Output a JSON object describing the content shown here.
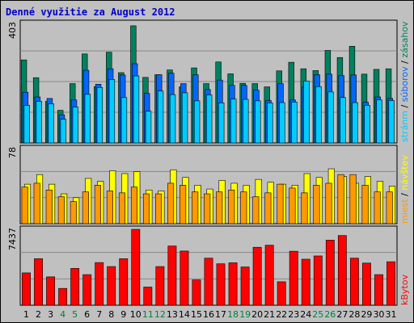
{
  "title": "Denné využitie za August 2012",
  "colors": {
    "background": "#c0c0c0",
    "panel": "#c0c0c0",
    "grid": "#888888",
    "title": "#0000cc",
    "weekend_label": "#007f3f",
    "weekday_label": "#000000",
    "pages": "#00ccff",
    "files": "#0066ff",
    "hits": "#00805f",
    "visits": "#ff9900",
    "sites": "#ffff00",
    "kbytes": "#ff0000"
  },
  "chart_data": [
    {
      "type": "bar",
      "panel": "hits-files-pages",
      "title": "",
      "ylabel_max": "403",
      "ymax": 403,
      "categories": [
        "1",
        "2",
        "3",
        "4",
        "5",
        "6",
        "7",
        "8",
        "9",
        "10",
        "11",
        "12",
        "13",
        "14",
        "15",
        "16",
        "17",
        "18",
        "19",
        "20",
        "21",
        "22",
        "23",
        "24",
        "25",
        "26",
        "27",
        "28",
        "29",
        "30",
        "31"
      ],
      "series": [
        {
          "name": "zásahov",
          "values": [
            280,
            220,
            140,
            110,
            200,
            300,
            190,
            306,
            237,
            395,
            221,
            230,
            246,
            189,
            253,
            200,
            273,
            233,
            201,
            200,
            189,
            243,
            272,
            250,
            244,
            312,
            288,
            326,
            232,
            248,
            250
          ]
        },
        {
          "name": "súborov",
          "values": [
            171,
            155,
            150,
            95,
            145,
            245,
            198,
            250,
            229,
            267,
            167,
            230,
            235,
            200,
            230,
            180,
            212,
            194,
            194,
            178,
            143,
            200,
            145,
            189,
            230,
            232,
            227,
            229,
            137,
            155,
            150
          ]
        },
        {
          "name": "stránm",
          "values": [
            127,
            140,
            132,
            80,
            121,
            164,
            187,
            214,
            153,
            226,
            107,
            175,
            163,
            169,
            142,
            162,
            135,
            148,
            147,
            142,
            135,
            136,
            138,
            209,
            190,
            172,
            153,
            136,
            127,
            145,
            143
          ]
        }
      ]
    },
    {
      "type": "bar",
      "panel": "sites-visits",
      "title": "",
      "ylabel_max": "78",
      "ymax": 78,
      "categories": [
        "1",
        "2",
        "3",
        "4",
        "5",
        "6",
        "7",
        "8",
        "9",
        "10",
        "11",
        "12",
        "13",
        "14",
        "15",
        "16",
        "17",
        "18",
        "19",
        "20",
        "21",
        "22",
        "23",
        "24",
        "25",
        "26",
        "27",
        "28",
        "29",
        "30",
        "31"
      ],
      "series": [
        {
          "name": "návštev",
          "values": [
            41,
            51,
            41,
            31,
            27,
            47,
            44,
            55,
            52,
            54,
            35,
            34,
            56,
            48,
            40,
            36,
            45,
            42,
            40,
            46,
            43,
            41,
            40,
            52,
            48,
            57,
            49,
            42,
            49,
            44,
            39
          ]
        },
        {
          "name": "miest",
          "values": [
            38,
            42,
            35,
            28,
            23,
            33,
            40,
            34,
            32,
            38,
            31,
            31,
            42,
            40,
            33,
            31,
            33,
            35,
            33,
            28,
            32,
            41,
            37,
            32,
            40,
            42,
            51,
            51,
            40,
            33,
            33
          ]
        }
      ]
    },
    {
      "type": "bar",
      "panel": "kbytes",
      "title": "",
      "ylabel_max": "7437",
      "ymax": 7437,
      "categories": [
        "1",
        "2",
        "3",
        "4",
        "5",
        "6",
        "7",
        "8",
        "9",
        "10",
        "11",
        "12",
        "13",
        "14",
        "15",
        "16",
        "17",
        "18",
        "19",
        "20",
        "21",
        "22",
        "23",
        "24",
        "25",
        "26",
        "27",
        "28",
        "29",
        "30",
        "31"
      ],
      "series": [
        {
          "name": "kBytov",
          "values": [
            3170,
            4560,
            2780,
            1650,
            3610,
            3000,
            4180,
            3790,
            4560,
            7437,
            1780,
            3790,
            5800,
            5310,
            2480,
            4610,
            4060,
            4160,
            3750,
            5680,
            5880,
            2300,
            5290,
            4510,
            4830,
            6380,
            6830,
            4610,
            4130,
            3000,
            4260
          ]
        }
      ]
    }
  ],
  "legend": {
    "top": [
      "zásahov",
      "súborov",
      "stránm"
    ],
    "mid": [
      "návštev",
      "miest"
    ],
    "bottom": [
      "kBytov"
    ]
  },
  "weekend_days": [
    "4",
    "5",
    "11",
    "12",
    "18",
    "19",
    "25",
    "26"
  ]
}
